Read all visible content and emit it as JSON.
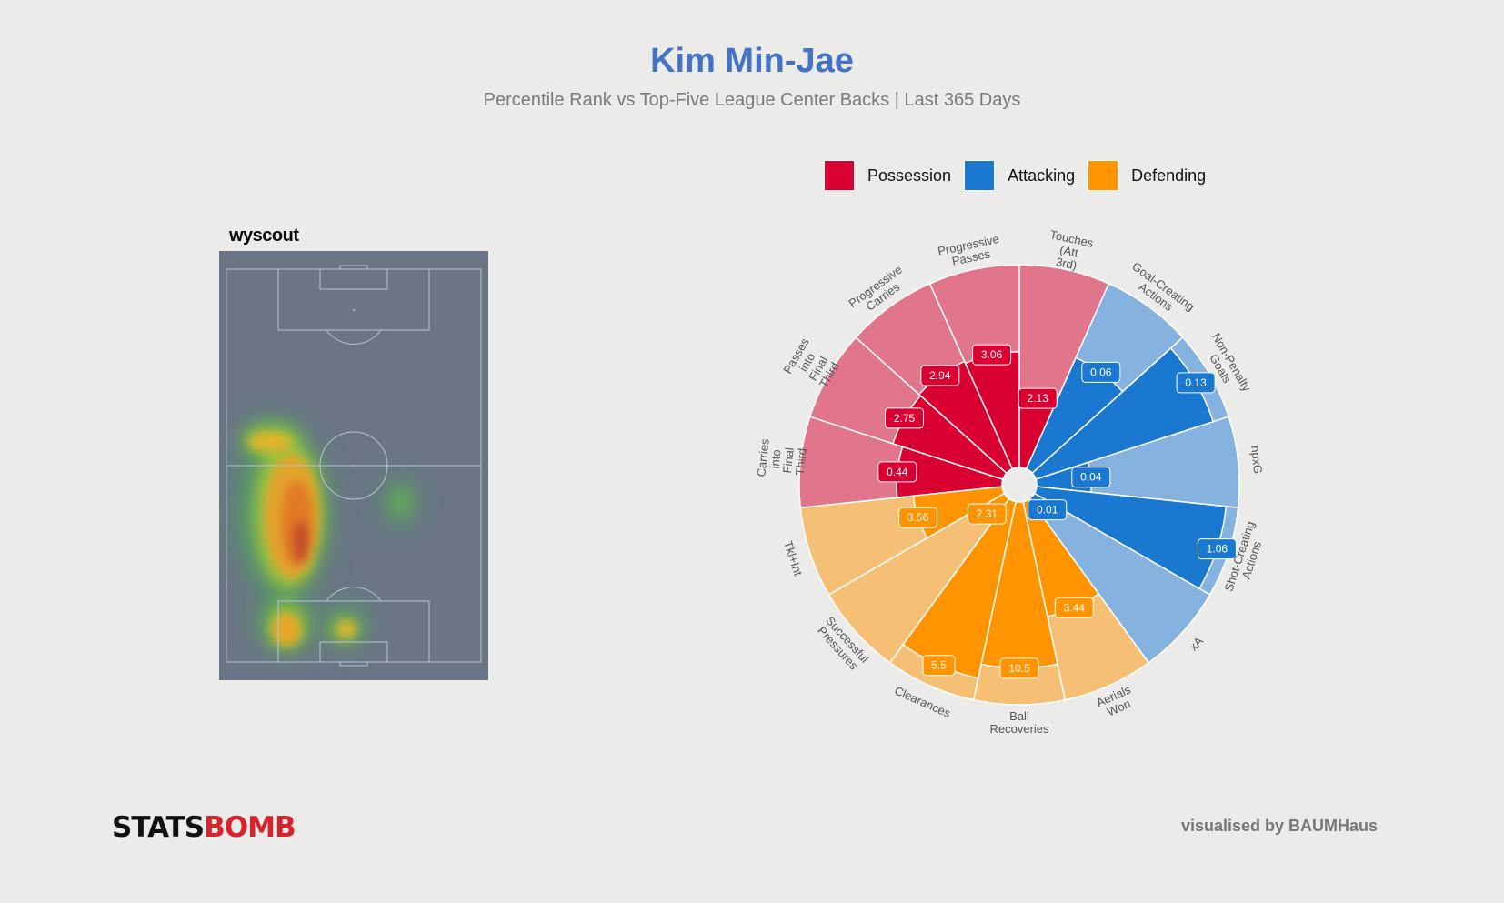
{
  "header": {
    "title": "Kim Min-Jae",
    "subtitle": "Percentile Rank vs Top-Five League Center Backs  |  Last 365 Days"
  },
  "legend": [
    {
      "label": "Possession",
      "color": "#d90032"
    },
    {
      "label": "Attacking",
      "color": "#1b78d0"
    },
    {
      "label": "Defending",
      "color": "#ff9400"
    }
  ],
  "heatmap": {
    "logo": "wyscout",
    "pitch_color": "#6b7585",
    "line_color": "#b7c4d9"
  },
  "chart_data": {
    "type": "polar-bar",
    "max_percentile": 100,
    "metrics": [
      {
        "name": "Touches (Att 3rd)",
        "label_lines": [
          "Touches",
          "(Att",
          "3rd)"
        ],
        "category": "Possession",
        "value": "2.13",
        "percentile": 35
      },
      {
        "name": "Goal-Creating Actions",
        "label_lines": [
          "Goal-Creating",
          "Actions"
        ],
        "category": "Attacking",
        "value": "0.06",
        "percentile": 60
      },
      {
        "name": "Non-Penalty Goals",
        "label_lines": [
          "Non-Penalty",
          "Goals"
        ],
        "category": "Attacking",
        "value": "0.13",
        "percentile": 92
      },
      {
        "name": "npxG",
        "label_lines": [
          "npxG"
        ],
        "category": "Attacking",
        "value": "0.04",
        "percentile": 27
      },
      {
        "name": "Shot-Creating Actions",
        "label_lines": [
          "Shot-Creating",
          "Actions"
        ],
        "category": "Attacking",
        "value": "1.06",
        "percentile": 94
      },
      {
        "name": "xA",
        "label_lines": [
          "xA"
        ],
        "category": "Attacking",
        "value": "0.01",
        "percentile": 10
      },
      {
        "name": "Aerials Won",
        "label_lines": [
          "Aerials",
          "Won"
        ],
        "category": "Defending",
        "value": "3.44",
        "percentile": 58
      },
      {
        "name": "Ball Recoveries",
        "label_lines": [
          "Ball",
          "Recoveries"
        ],
        "category": "Defending",
        "value": "10.5",
        "percentile": 82
      },
      {
        "name": "Clearances",
        "label_lines": [
          "Clearances"
        ],
        "category": "Defending",
        "value": "5.5",
        "percentile": 89
      },
      {
        "name": "Successful Pressures",
        "label_lines": [
          "Successful",
          "Pressures"
        ],
        "category": "Defending",
        "value": "2.31",
        "percentile": 13
      },
      {
        "name": "Tkl+Int",
        "label_lines": [
          "Tkl+Int"
        ],
        "category": "Defending",
        "value": "3.56",
        "percentile": 44
      },
      {
        "name": "Carries into Final Third",
        "label_lines": [
          "Carries",
          "into",
          "Final",
          "Third"
        ],
        "category": "Possession",
        "value": "0.44",
        "percentile": 52
      },
      {
        "name": "Passes into Final Third",
        "label_lines": [
          "Passes",
          "into",
          "Final",
          "Third"
        ],
        "category": "Possession",
        "value": "2.75",
        "percentile": 57
      },
      {
        "name": "Progressive Carries",
        "label_lines": [
          "Progressive",
          "Carries"
        ],
        "category": "Possession",
        "value": "2.94",
        "percentile": 58
      },
      {
        "name": "Progressive Passes",
        "label_lines": [
          "Progressive",
          "Passes"
        ],
        "category": "Possession",
        "value": "3.06",
        "percentile": 57
      }
    ],
    "colors": {
      "Possession": {
        "full": "#d90032",
        "light": "#e0758b"
      },
      "Attacking": {
        "full": "#1b78d0",
        "light": "#85b2df"
      },
      "Defending": {
        "full": "#ff9400",
        "light": "#f5c075"
      }
    }
  },
  "footer": {
    "brand_part1": "STATS",
    "brand_part2": "BOMB",
    "credit": "visualised by BAUMHaus"
  }
}
